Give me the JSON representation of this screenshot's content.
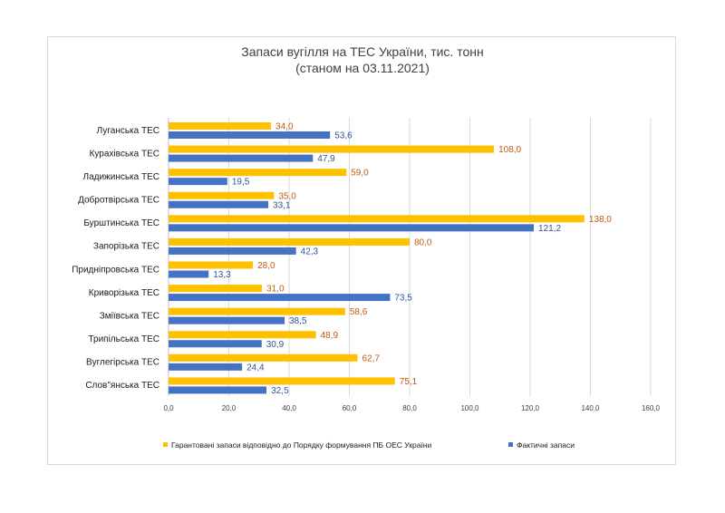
{
  "chart_data": {
    "type": "bar",
    "orientation": "horizontal",
    "title": "Запаси вугілля на ТЕС України, тис. тонн",
    "subtitle": "(станом на 03.11.2021)",
    "categories": [
      "Луганська ТЕС",
      "Курахівська ТЕС",
      "Ладижинська ТЕС",
      "Добротвірська ТЕС",
      "Бурштинська ТЕС",
      "Запорізька ТЕС",
      "Придніпровська ТЕС",
      "Криворізька ТЕС",
      "Зміївська ТЕС",
      "Трипільська ТЕС",
      "Вуглегірська ТЕС",
      "Слов\"янська ТЕС"
    ],
    "series": [
      {
        "name": "Гарантовані запаси відповідно до Порядку формування ПБ ОЕС України",
        "color": "#FFC000",
        "label_color": "#C55A11",
        "values": [
          34.0,
          108.0,
          59.0,
          35.0,
          138.0,
          80.0,
          28.0,
          31.0,
          58.6,
          48.9,
          62.7,
          75.1
        ],
        "labels": [
          "34,0",
          "108,0",
          "59,0",
          "35,0",
          "138,0",
          "80,0",
          "28,0",
          "31,0",
          "58,6",
          "48,9",
          "62,7",
          "75,1"
        ]
      },
      {
        "name": "Фактичні запаси",
        "color": "#4472C4",
        "label_color": "#2F5597",
        "values": [
          53.6,
          47.9,
          19.5,
          33.1,
          121.2,
          42.3,
          13.3,
          73.5,
          38.5,
          30.9,
          24.4,
          32.5
        ],
        "labels": [
          "53,6",
          "47,9",
          "19,5",
          "33,1",
          "121,2",
          "42,3",
          "13,3",
          "73,5",
          "38,5",
          "30,9",
          "24,4",
          "32,5"
        ]
      }
    ],
    "xlim": [
      0,
      160
    ],
    "ticks": [
      0,
      20,
      40,
      60,
      80,
      100,
      120,
      140,
      160
    ],
    "tick_labels": [
      "0,0",
      "20,0",
      "40,0",
      "60,0",
      "80,0",
      "100,0",
      "120,0",
      "140,0",
      "160,0"
    ],
    "grid": "vertical",
    "legend_position": "bottom"
  }
}
